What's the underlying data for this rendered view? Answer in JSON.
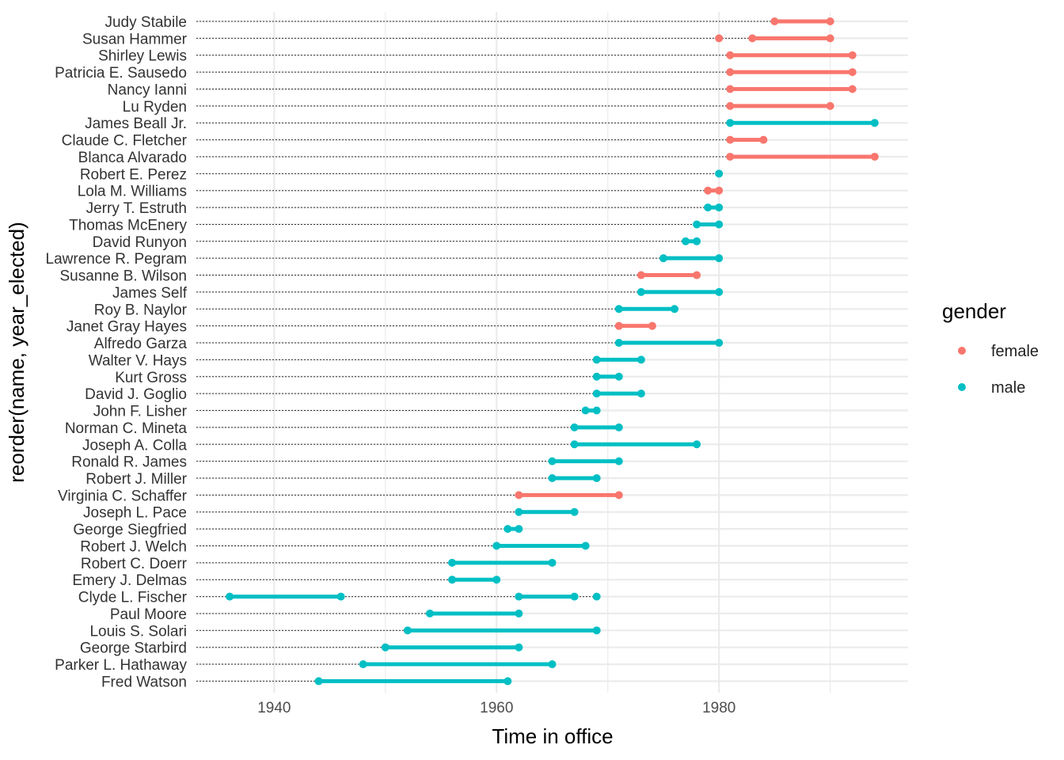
{
  "chart_data": {
    "type": "dumbbell",
    "xlabel": "Time in office",
    "ylabel": "reorder(name, year_elected)",
    "xlim": [
      1933,
      1997
    ],
    "x_ticks": [
      1940,
      1960,
      1980
    ],
    "x_minor_ticks": [
      1950,
      1970,
      1990
    ],
    "grid": true,
    "legend": {
      "title": "gender",
      "position": "right",
      "entries": [
        {
          "name": "female",
          "color": "#F8766D"
        },
        {
          "name": "male",
          "color": "#00BFC4"
        }
      ]
    },
    "colors": {
      "female": "#F8766D",
      "male": "#00BFC4",
      "grid": "#ebebeb",
      "guide": "#333333"
    },
    "people": [
      {
        "name": "Judy Stabile",
        "gender": "female",
        "terms": [
          [
            1985,
            1990
          ]
        ]
      },
      {
        "name": "Susan Hammer",
        "gender": "female",
        "terms": [
          [
            1980,
            1980
          ],
          [
            1983,
            1990
          ]
        ]
      },
      {
        "name": "Shirley Lewis",
        "gender": "female",
        "terms": [
          [
            1981,
            1992
          ]
        ]
      },
      {
        "name": "Patricia E. Sausedo",
        "gender": "female",
        "terms": [
          [
            1981,
            1992
          ]
        ]
      },
      {
        "name": "Nancy Ianni",
        "gender": "female",
        "terms": [
          [
            1981,
            1992
          ]
        ]
      },
      {
        "name": "Lu Ryden",
        "gender": "female",
        "terms": [
          [
            1981,
            1990
          ]
        ]
      },
      {
        "name": "James Beall Jr.",
        "gender": "male",
        "terms": [
          [
            1981,
            1994
          ]
        ]
      },
      {
        "name": "Claude C. Fletcher",
        "gender": "female",
        "terms": [
          [
            1981,
            1984
          ]
        ]
      },
      {
        "name": "Blanca Alvarado",
        "gender": "female",
        "terms": [
          [
            1981,
            1994
          ]
        ]
      },
      {
        "name": "Robert E. Perez",
        "gender": "male",
        "terms": [
          [
            1980,
            1980
          ]
        ]
      },
      {
        "name": "Lola M. Williams",
        "gender": "female",
        "terms": [
          [
            1979,
            1980
          ]
        ]
      },
      {
        "name": "Jerry T. Estruth",
        "gender": "male",
        "terms": [
          [
            1979,
            1980
          ]
        ]
      },
      {
        "name": "Thomas McEnery",
        "gender": "male",
        "terms": [
          [
            1978,
            1980
          ]
        ]
      },
      {
        "name": "David Runyon",
        "gender": "male",
        "terms": [
          [
            1977,
            1978
          ]
        ]
      },
      {
        "name": "Lawrence R. Pegram",
        "gender": "male",
        "terms": [
          [
            1975,
            1980
          ]
        ]
      },
      {
        "name": "Susanne B. Wilson",
        "gender": "female",
        "terms": [
          [
            1973,
            1978
          ]
        ]
      },
      {
        "name": "James Self",
        "gender": "male",
        "terms": [
          [
            1973,
            1980
          ]
        ]
      },
      {
        "name": "Roy B. Naylor",
        "gender": "male",
        "terms": [
          [
            1971,
            1976
          ]
        ]
      },
      {
        "name": "Janet Gray Hayes",
        "gender": "female",
        "terms": [
          [
            1971,
            1974
          ]
        ]
      },
      {
        "name": "Alfredo Garza",
        "gender": "male",
        "terms": [
          [
            1971,
            1980
          ]
        ]
      },
      {
        "name": "Walter V. Hays",
        "gender": "male",
        "terms": [
          [
            1969,
            1973
          ]
        ]
      },
      {
        "name": "Kurt Gross",
        "gender": "male",
        "terms": [
          [
            1969,
            1971
          ]
        ]
      },
      {
        "name": "David J. Goglio",
        "gender": "male",
        "terms": [
          [
            1969,
            1973
          ]
        ]
      },
      {
        "name": "John F. Lisher",
        "gender": "male",
        "terms": [
          [
            1968,
            1969
          ]
        ]
      },
      {
        "name": "Norman C. Mineta",
        "gender": "male",
        "terms": [
          [
            1967,
            1971
          ]
        ]
      },
      {
        "name": "Joseph A. Colla",
        "gender": "male",
        "terms": [
          [
            1967,
            1978
          ]
        ]
      },
      {
        "name": "Ronald R. James",
        "gender": "male",
        "terms": [
          [
            1965,
            1971
          ]
        ]
      },
      {
        "name": "Robert J. Miller",
        "gender": "male",
        "terms": [
          [
            1965,
            1969
          ]
        ]
      },
      {
        "name": "Virginia C. Schaffer",
        "gender": "female",
        "terms": [
          [
            1962,
            1971
          ]
        ]
      },
      {
        "name": "Joseph L. Pace",
        "gender": "male",
        "terms": [
          [
            1962,
            1967
          ]
        ]
      },
      {
        "name": "George Siegfried",
        "gender": "male",
        "terms": [
          [
            1961,
            1962
          ]
        ]
      },
      {
        "name": "Robert J. Welch",
        "gender": "male",
        "terms": [
          [
            1960,
            1968
          ]
        ]
      },
      {
        "name": "Robert C. Doerr",
        "gender": "male",
        "terms": [
          [
            1956,
            1965
          ]
        ]
      },
      {
        "name": "Emery J. Delmas",
        "gender": "male",
        "terms": [
          [
            1956,
            1960
          ]
        ]
      },
      {
        "name": "Clyde L. Fischer",
        "gender": "male",
        "terms": [
          [
            1936,
            1946
          ],
          [
            1962,
            1967
          ],
          [
            1969,
            1969
          ]
        ]
      },
      {
        "name": "Paul Moore",
        "gender": "male",
        "terms": [
          [
            1954,
            1962
          ]
        ]
      },
      {
        "name": "Louis S. Solari",
        "gender": "male",
        "terms": [
          [
            1952,
            1969
          ]
        ]
      },
      {
        "name": "George Starbird",
        "gender": "male",
        "terms": [
          [
            1950,
            1962
          ]
        ]
      },
      {
        "name": "Parker L. Hathaway",
        "gender": "male",
        "terms": [
          [
            1948,
            1965
          ]
        ]
      },
      {
        "name": "Fred Watson",
        "gender": "male",
        "terms": [
          [
            1944,
            1961
          ]
        ]
      }
    ]
  }
}
